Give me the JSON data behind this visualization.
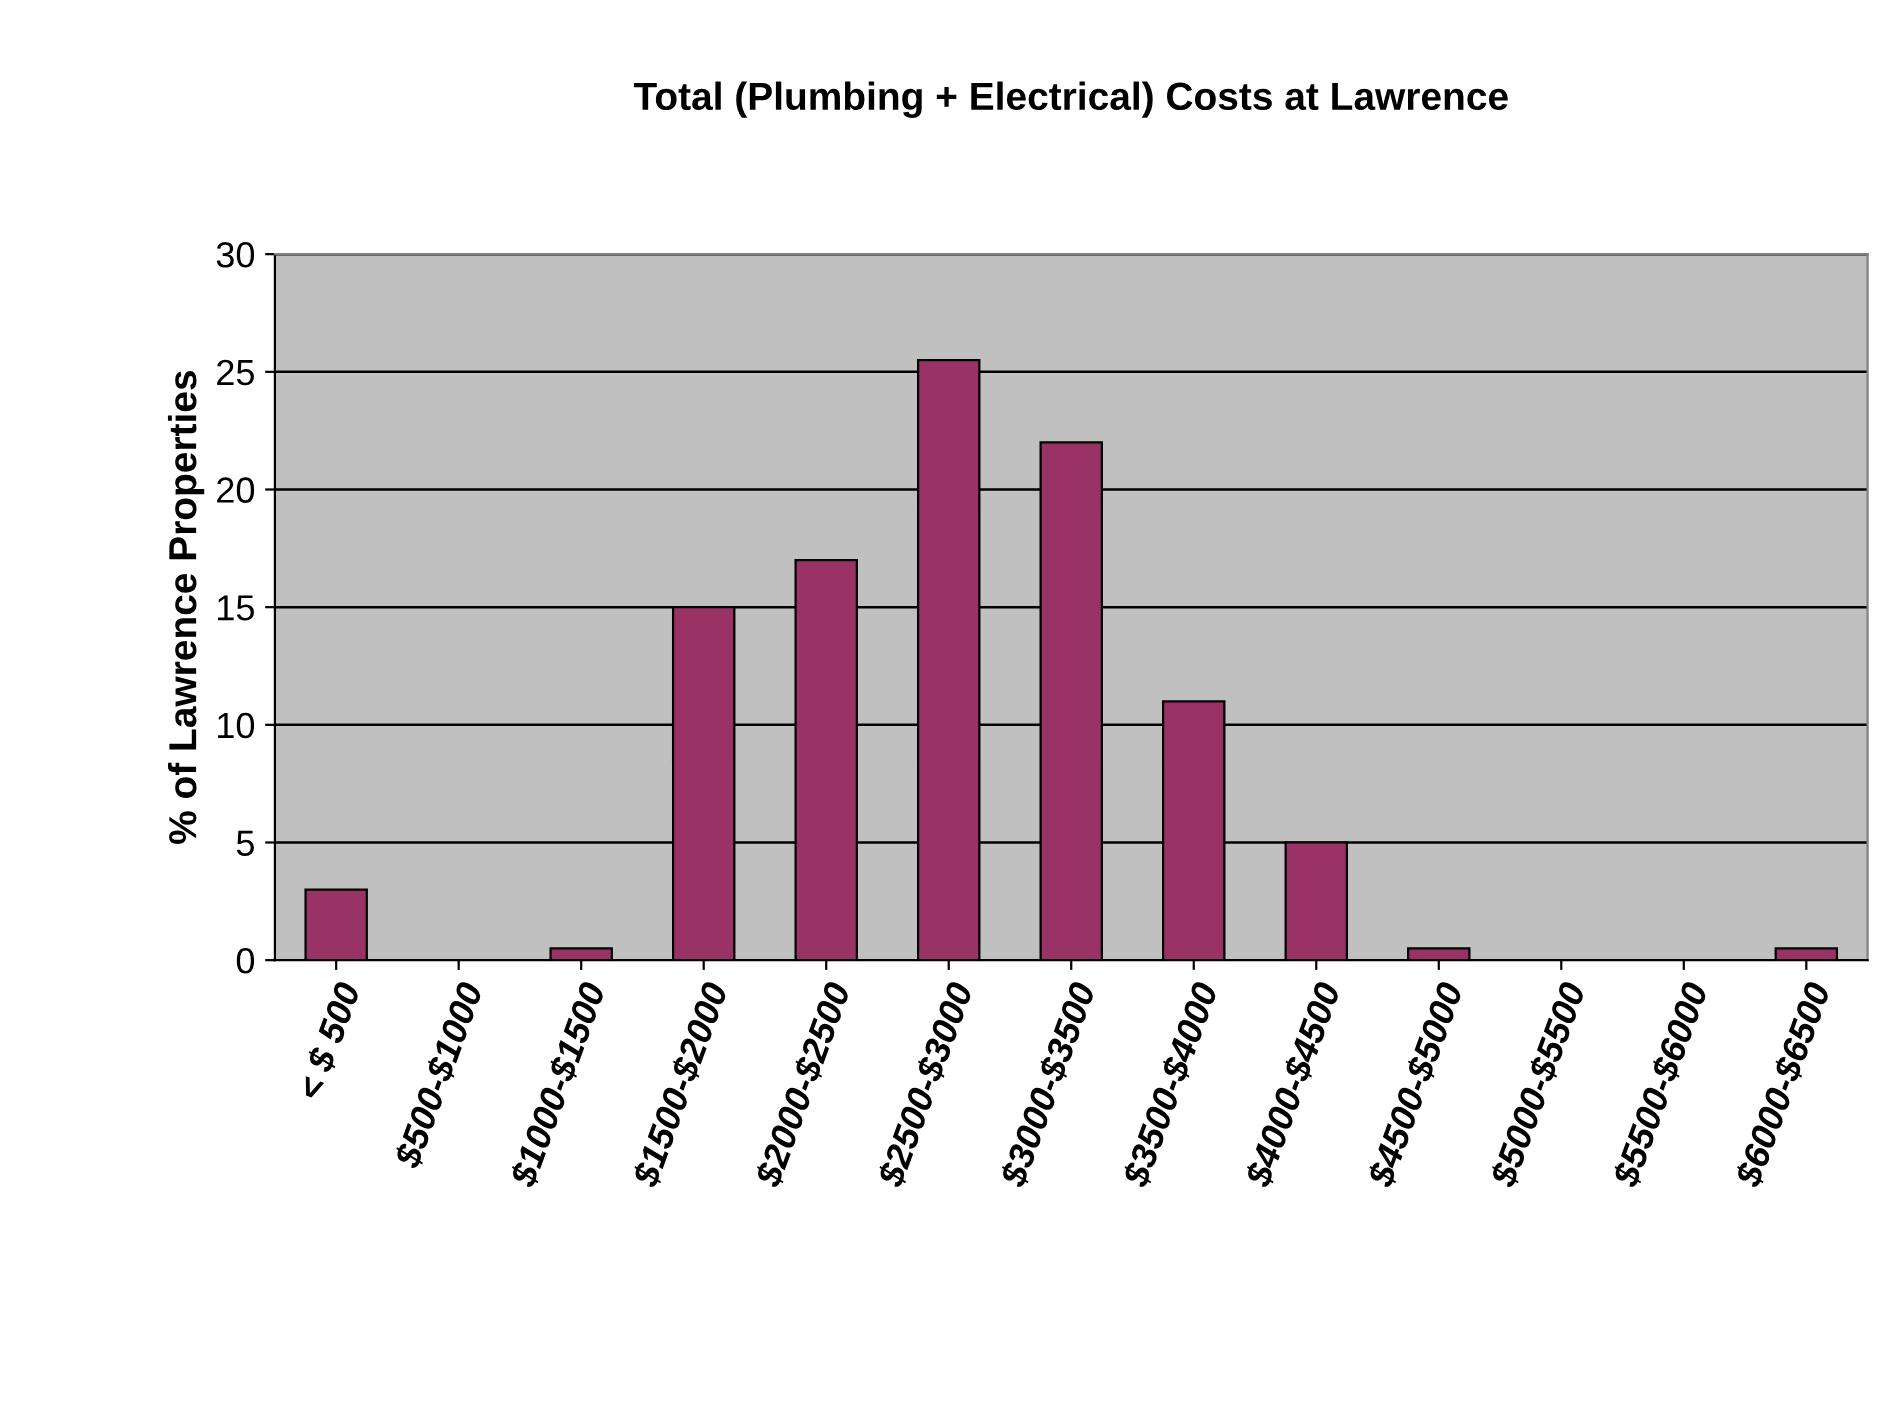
{
  "chart_data": {
    "type": "bar",
    "title": "Total (Plumbing + Electrical) Costs at Lawrence",
    "ylabel": "% of Lawrence Properties",
    "categories": [
      "< $ 500",
      "$500-$1000",
      "$1000-$1500",
      "$1500-$2000",
      "$2000-$2500",
      "$2500-$3000",
      "$3000-$3500",
      "$3500-$4000",
      "$4000-$4500",
      "$4500-$5000",
      "$5000-$5500",
      "$5500-$6000",
      "$6000-$6500"
    ],
    "values": [
      3,
      0,
      0.5,
      15,
      17,
      25.5,
      22,
      11,
      5,
      0.5,
      0,
      0,
      0.5
    ],
    "color": "#993366",
    "ylim": [
      0,
      30
    ],
    "yticks": [
      0,
      5,
      10,
      15,
      20,
      25,
      30
    ],
    "grid": "y"
  }
}
